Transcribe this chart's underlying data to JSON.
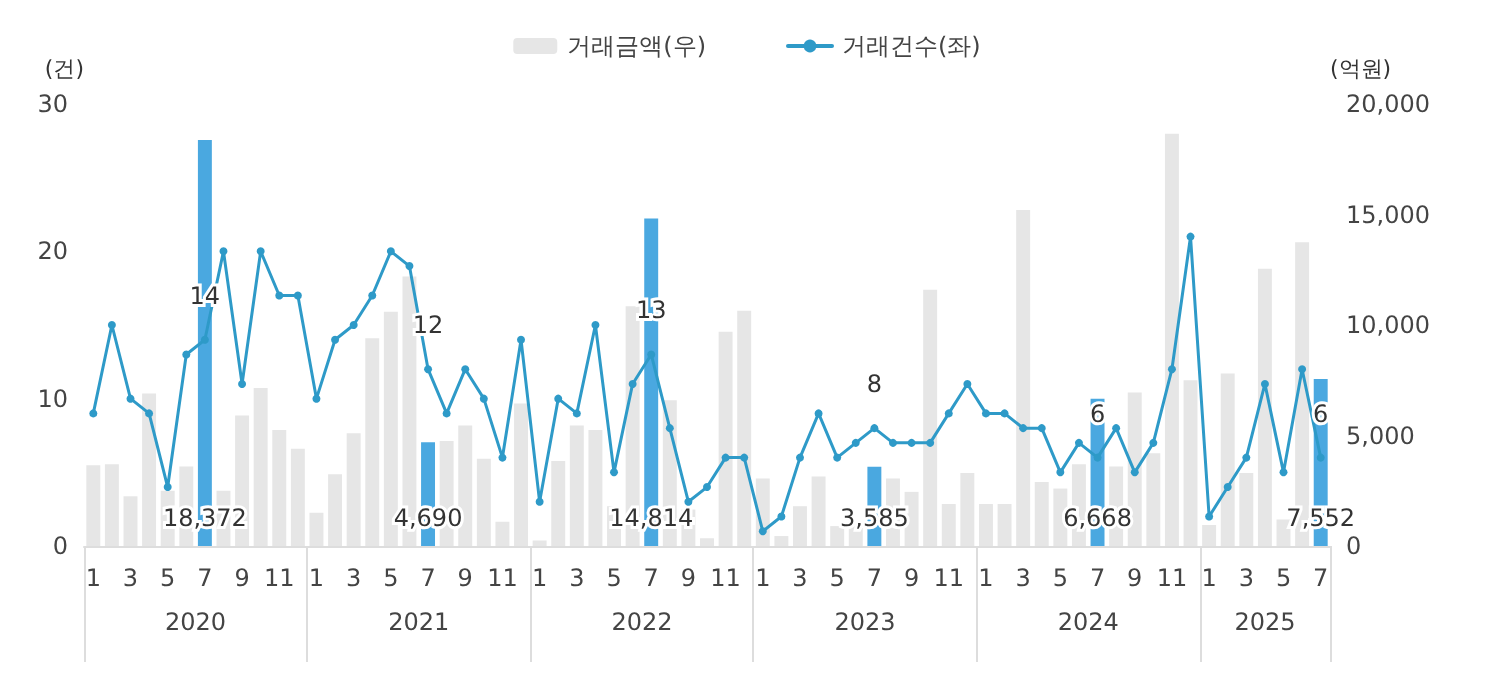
{
  "chart_data": {
    "type": "bar",
    "ylabel": "(건)",
    "y2label": "(억원)",
    "categories": [
      "1",
      null,
      "3",
      null,
      "5",
      null,
      "7",
      null,
      "9",
      null,
      "11",
      null,
      "1",
      null,
      "3",
      null,
      "5",
      null,
      "7",
      null,
      "9",
      null,
      "11",
      null,
      "1",
      null,
      "3",
      null,
      "5",
      null,
      "7",
      null,
      "9",
      null,
      "11",
      null,
      "1",
      null,
      "3",
      null,
      "5",
      null,
      "7",
      null,
      "9",
      null,
      "11",
      null,
      "1",
      null,
      "3",
      null,
      "5",
      null,
      "7",
      null,
      "9",
      null,
      "11",
      null,
      "1",
      null,
      "3",
      null,
      "5",
      null,
      "7"
    ],
    "annotations": [
      "2020",
      "2021",
      "2022",
      "2023",
      "2024",
      "2025"
    ],
    "series": [
      {
        "name": "거래금액(우)",
        "axis": "y2",
        "color": "#e6e6e6",
        "colors": [
          "#e6e6e6",
          "#e6e6e6",
          "#e6e6e6",
          "#e6e6e6",
          "#e6e6e6",
          "#e6e6e6",
          "#4aa8e0",
          "#e6e6e6",
          "#e6e6e6",
          "#e6e6e6",
          "#e6e6e6",
          "#e6e6e6",
          "#e6e6e6",
          "#e6e6e6",
          "#e6e6e6",
          "#e6e6e6",
          "#e6e6e6",
          "#e6e6e6",
          "#4aa8e0",
          "#e6e6e6",
          "#e6e6e6",
          "#e6e6e6",
          "#e6e6e6",
          "#e6e6e6",
          "#e6e6e6",
          "#e6e6e6",
          "#e6e6e6",
          "#e6e6e6",
          "#e6e6e6",
          "#e6e6e6",
          "#4aa8e0",
          "#e6e6e6",
          "#e6e6e6",
          "#e6e6e6",
          "#e6e6e6",
          "#e6e6e6",
          "#e6e6e6",
          "#e6e6e6",
          "#e6e6e6",
          "#e6e6e6",
          "#e6e6e6",
          "#e6e6e6",
          "#4aa8e0",
          "#e6e6e6",
          "#e6e6e6",
          "#e6e6e6",
          "#e6e6e6",
          "#e6e6e6",
          "#e6e6e6",
          "#e6e6e6",
          "#e6e6e6",
          "#e6e6e6",
          "#e6e6e6",
          "#e6e6e6",
          "#4aa8e0",
          "#e6e6e6",
          "#e6e6e6",
          "#e6e6e6",
          "#e6e6e6",
          "#e6e6e6",
          "#e6e6e6",
          "#e6e6e6",
          "#e6e6e6",
          "#e6e6e6",
          "#e6e6e6",
          "#e6e6e6",
          "#4aa8e0"
        ],
        "values": [
          3650,
          3700,
          2250,
          6900,
          2500,
          3600,
          18372,
          2500,
          5900,
          7150,
          5250,
          4400,
          1500,
          3250,
          5100,
          9400,
          10600,
          12200,
          4690,
          4750,
          5450,
          3950,
          1100,
          6450,
          250,
          3850,
          5450,
          5250,
          1800,
          10850,
          14814,
          6600,
          1650,
          350,
          9700,
          10650,
          3050,
          450,
          1800,
          3150,
          900,
          1000,
          3585,
          3050,
          2450,
          11600,
          1900,
          3300,
          1900,
          1900,
          15200,
          2900,
          2600,
          3700,
          6668,
          3600,
          6950,
          4200,
          18650,
          7500,
          950,
          7800,
          3300,
          12550,
          1200,
          13750,
          7552
        ],
        "value_labels": [
          null,
          null,
          null,
          null,
          null,
          null,
          "18,372",
          null,
          null,
          null,
          null,
          null,
          null,
          null,
          null,
          null,
          null,
          null,
          "4,690",
          null,
          null,
          null,
          null,
          null,
          null,
          null,
          null,
          null,
          null,
          null,
          "14,814",
          null,
          null,
          null,
          null,
          null,
          null,
          null,
          null,
          null,
          null,
          null,
          "3,585",
          null,
          null,
          null,
          null,
          null,
          null,
          null,
          null,
          null,
          null,
          null,
          "6,668",
          null,
          null,
          null,
          null,
          null,
          null,
          null,
          null,
          null,
          null,
          null,
          "7,552"
        ]
      },
      {
        "name": "거래건수(좌)",
        "type": "line",
        "color": "#2e9ac8",
        "values": [
          9,
          15,
          10,
          9,
          4,
          13,
          14,
          20,
          11,
          20,
          17,
          17,
          10,
          14,
          15,
          17,
          20,
          19,
          12,
          9,
          12,
          10,
          6,
          14,
          3,
          10,
          9,
          15,
          5,
          11,
          13,
          8,
          3,
          4,
          6,
          6,
          1,
          2,
          6,
          9,
          6,
          7,
          8,
          7,
          7,
          7,
          9,
          11,
          9,
          9,
          8,
          8,
          5,
          7,
          6,
          8,
          5,
          7,
          12,
          21,
          2,
          4,
          6,
          11,
          5,
          12,
          6
        ],
        "value_labels": [
          null,
          null,
          null,
          null,
          null,
          null,
          "14",
          null,
          null,
          null,
          null,
          null,
          null,
          null,
          null,
          null,
          null,
          null,
          "12",
          null,
          null,
          null,
          null,
          null,
          null,
          null,
          null,
          null,
          null,
          null,
          "13",
          null,
          null,
          null,
          null,
          null,
          null,
          null,
          null,
          null,
          null,
          null,
          "8",
          null,
          null,
          null,
          null,
          null,
          null,
          null,
          null,
          null,
          null,
          null,
          "6",
          null,
          null,
          null,
          null,
          null,
          null,
          null,
          null,
          null,
          null,
          null,
          "6"
        ]
      }
    ],
    "ylim": [
      0,
      30
    ],
    "yticks": [
      0,
      10,
      20,
      30
    ],
    "y2lim": [
      0,
      20000
    ],
    "y2ticks": [
      0,
      {
        "value": 5000,
        "label": "5,000"
      },
      {
        "value": 10000,
        "label": "10,000"
      },
      {
        "value": 15000,
        "label": "15,000"
      },
      {
        "value": 20000,
        "label": "20,000"
      }
    ],
    "legend": "top",
    "grid": false,
    "marker": "circle",
    "line_style": "solid"
  }
}
